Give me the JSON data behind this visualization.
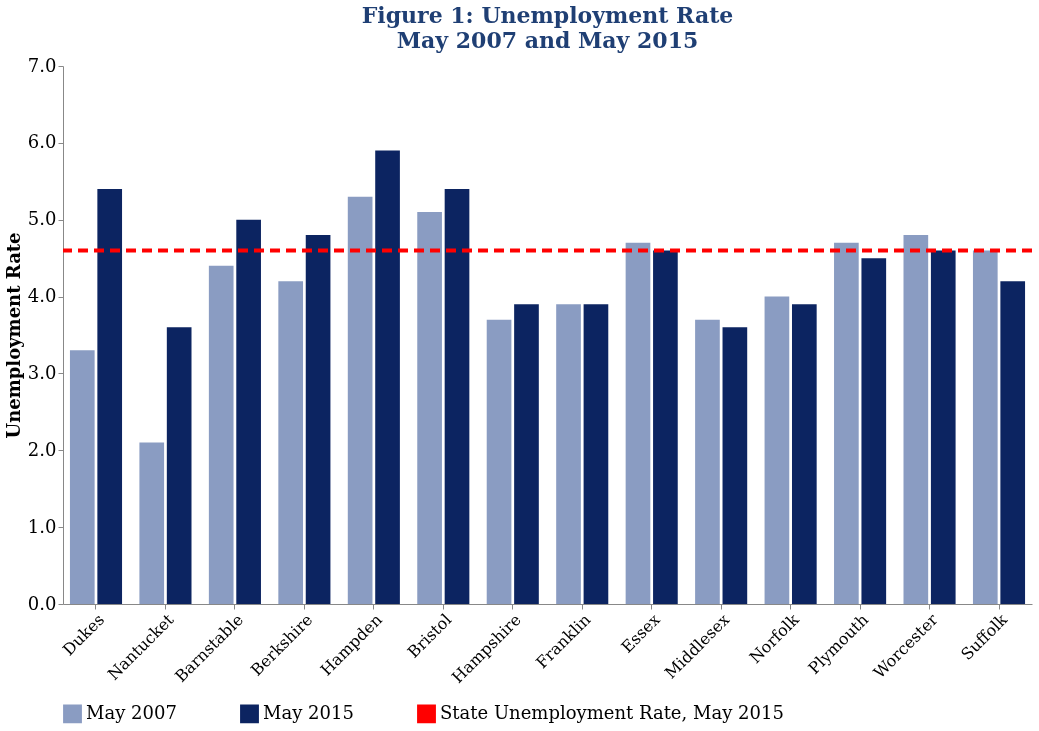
{
  "chart_data": {
    "type": "bar",
    "title": "Figure 1: Unemployment Rate",
    "subtitle": "May 2007 and May 2015",
    "ylabel": "Unemployment Rate",
    "categories": [
      "Dukes",
      "Nantucket",
      "Barnstable",
      "Berkshire",
      "Hampden",
      "Bristol",
      "Hampshire",
      "Franklin",
      "Essex",
      "Middlesex",
      "Norfolk",
      "Plymouth",
      "Worcester",
      "Suffolk"
    ],
    "series": [
      {
        "name": "May 2007",
        "color": "#8a9cc2",
        "values": [
          3.3,
          2.1,
          4.4,
          4.2,
          5.3,
          5.1,
          3.7,
          3.9,
          4.7,
          3.7,
          4.0,
          4.7,
          4.8,
          4.6
        ]
      },
      {
        "name": "May 2015",
        "color": "#0c2461",
        "values": [
          5.4,
          3.6,
          5.0,
          4.8,
          5.9,
          5.4,
          3.9,
          3.9,
          4.6,
          3.6,
          3.9,
          4.5,
          4.6,
          4.2
        ]
      }
    ],
    "ylim": [
      0,
      7
    ],
    "yticks": [
      {
        "value": 0,
        "label": "0.0"
      },
      {
        "value": 1,
        "label": "1.0"
      },
      {
        "value": 2,
        "label": "2.0"
      },
      {
        "value": 3,
        "label": "3.0"
      },
      {
        "value": 4,
        "label": "4.0"
      },
      {
        "value": 5,
        "label": "5.0"
      },
      {
        "value": 6,
        "label": "6.0"
      },
      {
        "value": 7,
        "label": "7.0"
      }
    ],
    "ref_lines": [
      {
        "axis": "y",
        "value": 4.6,
        "label": "State Unemployment Rate, May 2015",
        "color": "#ff0000",
        "line_style": "dashed"
      }
    ],
    "grid": false,
    "legend": "bottom"
  }
}
